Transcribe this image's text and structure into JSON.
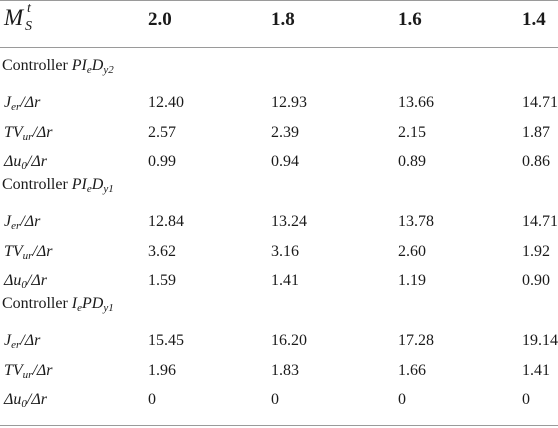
{
  "header": {
    "ms_main": "M",
    "ms_sup": "t",
    "ms_sub": "S",
    "columns": [
      "2.0",
      "1.8",
      "1.6",
      "1.4"
    ]
  },
  "sections": [
    {
      "prefix": "Controller",
      "name": "PI",
      "name_sub": "e",
      "name_rest": "D",
      "name_sub2": "y2",
      "rows": [
        {
          "metric": "J",
          "metric_sub": "er",
          "metric_tail": "/Δr",
          "values": [
            "12.40",
            "12.93",
            "13.66",
            "14.71"
          ]
        },
        {
          "metric": "TV",
          "metric_sub": "ur",
          "metric_tail": "/Δr",
          "values": [
            "2.57",
            "2.39",
            "2.15",
            "1.87"
          ]
        },
        {
          "metric": "Δu",
          "metric_sub": "0",
          "metric_tail": "/Δr",
          "values": [
            "0.99",
            "0.94",
            "0.89",
            "0.86"
          ]
        }
      ]
    },
    {
      "prefix": "Controller",
      "name": "PI",
      "name_sub": "e",
      "name_rest": "D",
      "name_sub2": "y1",
      "rows": [
        {
          "metric": "J",
          "metric_sub": "er",
          "metric_tail": "/Δr",
          "values": [
            "12.84",
            "13.24",
            "13.78",
            "14.71"
          ]
        },
        {
          "metric": "TV",
          "metric_sub": "ur",
          "metric_tail": "/Δr",
          "values": [
            "3.62",
            "3.16",
            "2.60",
            "1.92"
          ]
        },
        {
          "metric": "Δu",
          "metric_sub": "0",
          "metric_tail": "/Δr",
          "values": [
            "1.59",
            "1.41",
            "1.19",
            "0.90"
          ]
        }
      ]
    },
    {
      "prefix": "Controller",
      "name": "I",
      "name_sub": "e",
      "name_rest": "PD",
      "name_sub2": "y1",
      "rows": [
        {
          "metric": "J",
          "metric_sub": "er",
          "metric_tail": "/Δr",
          "values": [
            "15.45",
            "16.20",
            "17.28",
            "19.14"
          ]
        },
        {
          "metric": "TV",
          "metric_sub": "ur",
          "metric_tail": "/Δr",
          "values": [
            "1.96",
            "1.83",
            "1.66",
            "1.41"
          ]
        },
        {
          "metric": "Δu",
          "metric_sub": "0",
          "metric_tail": "/Δr",
          "values": [
            "0",
            "0",
            "0",
            "0"
          ]
        }
      ]
    }
  ]
}
